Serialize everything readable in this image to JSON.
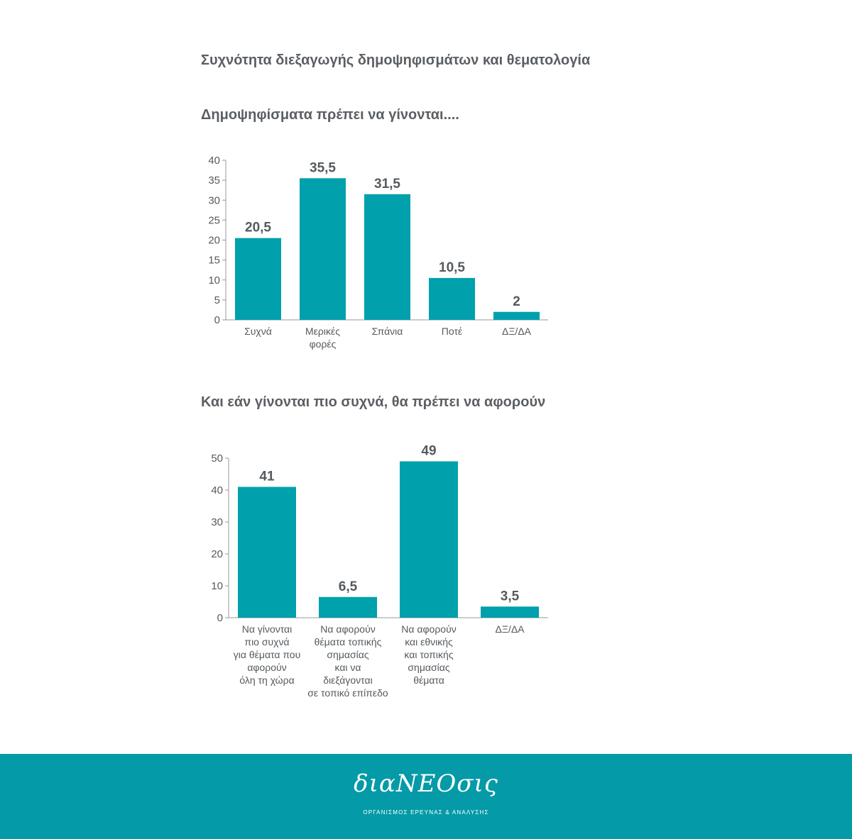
{
  "page": {
    "title": "Συχνότητα διεξαγωγής δημοψηφισμάτων και θεματολογία"
  },
  "colors": {
    "bar": "#00a0ad",
    "axis": "#999999",
    "text": "#555a5e",
    "footer": "#059aa7"
  },
  "chart_data": [
    {
      "type": "bar",
      "title": "Δημοψηφίσματα πρέπει να γίνονται....",
      "categories": [
        [
          "Συχνά"
        ],
        [
          "Μερικές",
          "φορές"
        ],
        [
          "Σπάνια"
        ],
        [
          "Ποτέ"
        ],
        [
          "ΔΞ/ΔΑ"
        ]
      ],
      "values": [
        20.5,
        35.5,
        31.5,
        10.5,
        2
      ],
      "value_labels": [
        "20,5",
        "35,5",
        "31,5",
        "10,5",
        "2"
      ],
      "yticks": [
        0,
        5,
        10,
        15,
        20,
        25,
        30,
        35,
        40
      ],
      "ylim": [
        0,
        40
      ],
      "xlabel": "",
      "ylabel": "",
      "grid": false,
      "legend": "none"
    },
    {
      "type": "bar",
      "title": "Και εάν γίνονται πιο συχνά, θα πρέπει να αφορούν",
      "categories": [
        [
          "Να γίνονται",
          "πιο συχνά",
          "για θέματα που",
          "αφορούν",
          "όλη τη χώρα"
        ],
        [
          "Να αφορούν",
          "θέματα τοπικής",
          "σημασίας",
          "και να",
          "διεξάγονται",
          "σε τοπικό επίπεδο"
        ],
        [
          "Να αφορούν",
          "και εθνικής",
          "και τοπικής",
          "σημασίας",
          "θέματα"
        ],
        [
          "ΔΞ/ΔΑ"
        ]
      ],
      "values": [
        41,
        6.5,
        49,
        3.5
      ],
      "value_labels": [
        "41",
        "6,5",
        "49",
        "3,5"
      ],
      "yticks": [
        0,
        10,
        20,
        30,
        40,
        50
      ],
      "ylim": [
        0,
        50
      ],
      "xlabel": "",
      "ylabel": "",
      "grid": false,
      "legend": "none"
    }
  ],
  "footer": {
    "logo_text": "διαΝΕΟσις",
    "tagline": "ΟΡΓΑΝΙΣΜΟΣ ΕΡΕΥΝΑΣ & ΑΝΑΛΥΣΗΣ"
  }
}
